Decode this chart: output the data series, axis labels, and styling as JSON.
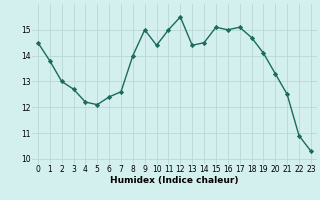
{
  "x": [
    0,
    1,
    2,
    3,
    4,
    5,
    6,
    7,
    8,
    9,
    10,
    11,
    12,
    13,
    14,
    15,
    16,
    17,
    18,
    19,
    20,
    21,
    22,
    23
  ],
  "y": [
    14.5,
    13.8,
    13.0,
    12.7,
    12.2,
    12.1,
    12.4,
    12.6,
    14.0,
    15.0,
    14.4,
    15.0,
    15.5,
    14.4,
    14.5,
    15.1,
    15.0,
    15.1,
    14.7,
    14.1,
    13.3,
    12.5,
    10.9,
    10.3
  ],
  "xlabel": "Humidex (Indice chaleur)",
  "xlim": [
    -0.5,
    23.5
  ],
  "ylim": [
    9.8,
    16.0
  ],
  "yticks": [
    10,
    11,
    12,
    13,
    14,
    15
  ],
  "xticks": [
    0,
    1,
    2,
    3,
    4,
    5,
    6,
    7,
    8,
    9,
    10,
    11,
    12,
    13,
    14,
    15,
    16,
    17,
    18,
    19,
    20,
    21,
    22,
    23
  ],
  "line_color": "#1a6b5e",
  "bg_color": "#d4f0ee",
  "grid_color": "#b8d8d5",
  "marker": "D",
  "marker_size": 2.2,
  "line_width": 1.0,
  "tick_fontsize": 5.5,
  "xlabel_fontsize": 6.5
}
